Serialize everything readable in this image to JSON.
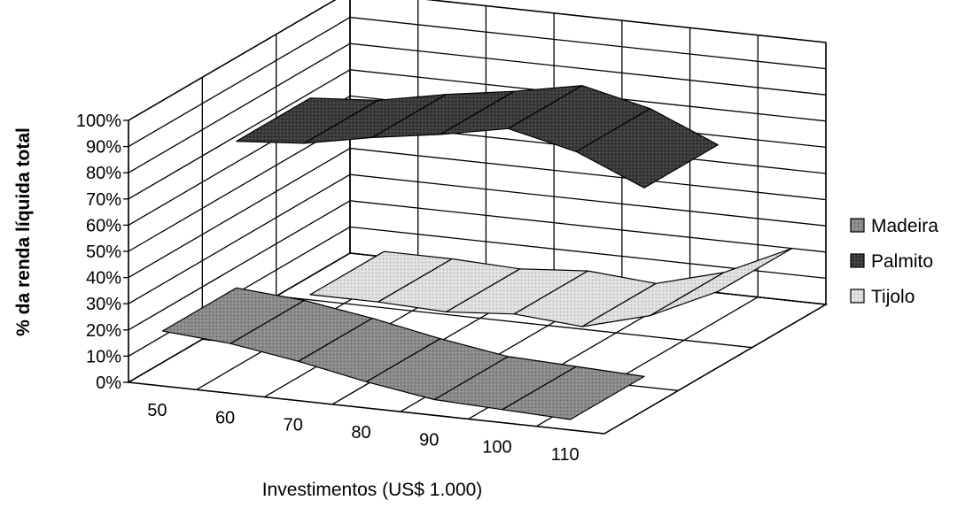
{
  "chart_data": {
    "type": "area",
    "subtype": "3d-surface-ribbons",
    "title": "",
    "xlabel": "Investimentos (US$ 1.000)",
    "ylabel": "% da renda líquida total",
    "categories": [
      "50",
      "60",
      "70",
      "80",
      "90",
      "100",
      "110"
    ],
    "x": [
      50,
      60,
      70,
      80,
      90,
      100,
      110
    ],
    "y_ticks": [
      "0%",
      "10%",
      "20%",
      "30%",
      "40%",
      "50%",
      "60%",
      "70%",
      "80%",
      "90%",
      "100%"
    ],
    "ylim": [
      0,
      100
    ],
    "grid": true,
    "legend_position": "right",
    "series": [
      {
        "name": "Madeira",
        "values": [
          21,
          19,
          15,
          10,
          6,
          5,
          4
        ],
        "color": "#8c8c8c"
      },
      {
        "name": "Palmito",
        "values": [
          77,
          79,
          84,
          88,
          93,
          87,
          76
        ],
        "color": "#3c3c3c"
      },
      {
        "name": "Tijolo",
        "values": [
          2,
          2,
          1,
          3,
          1,
          8,
          20
        ],
        "color": "#dcdcdc"
      }
    ]
  }
}
